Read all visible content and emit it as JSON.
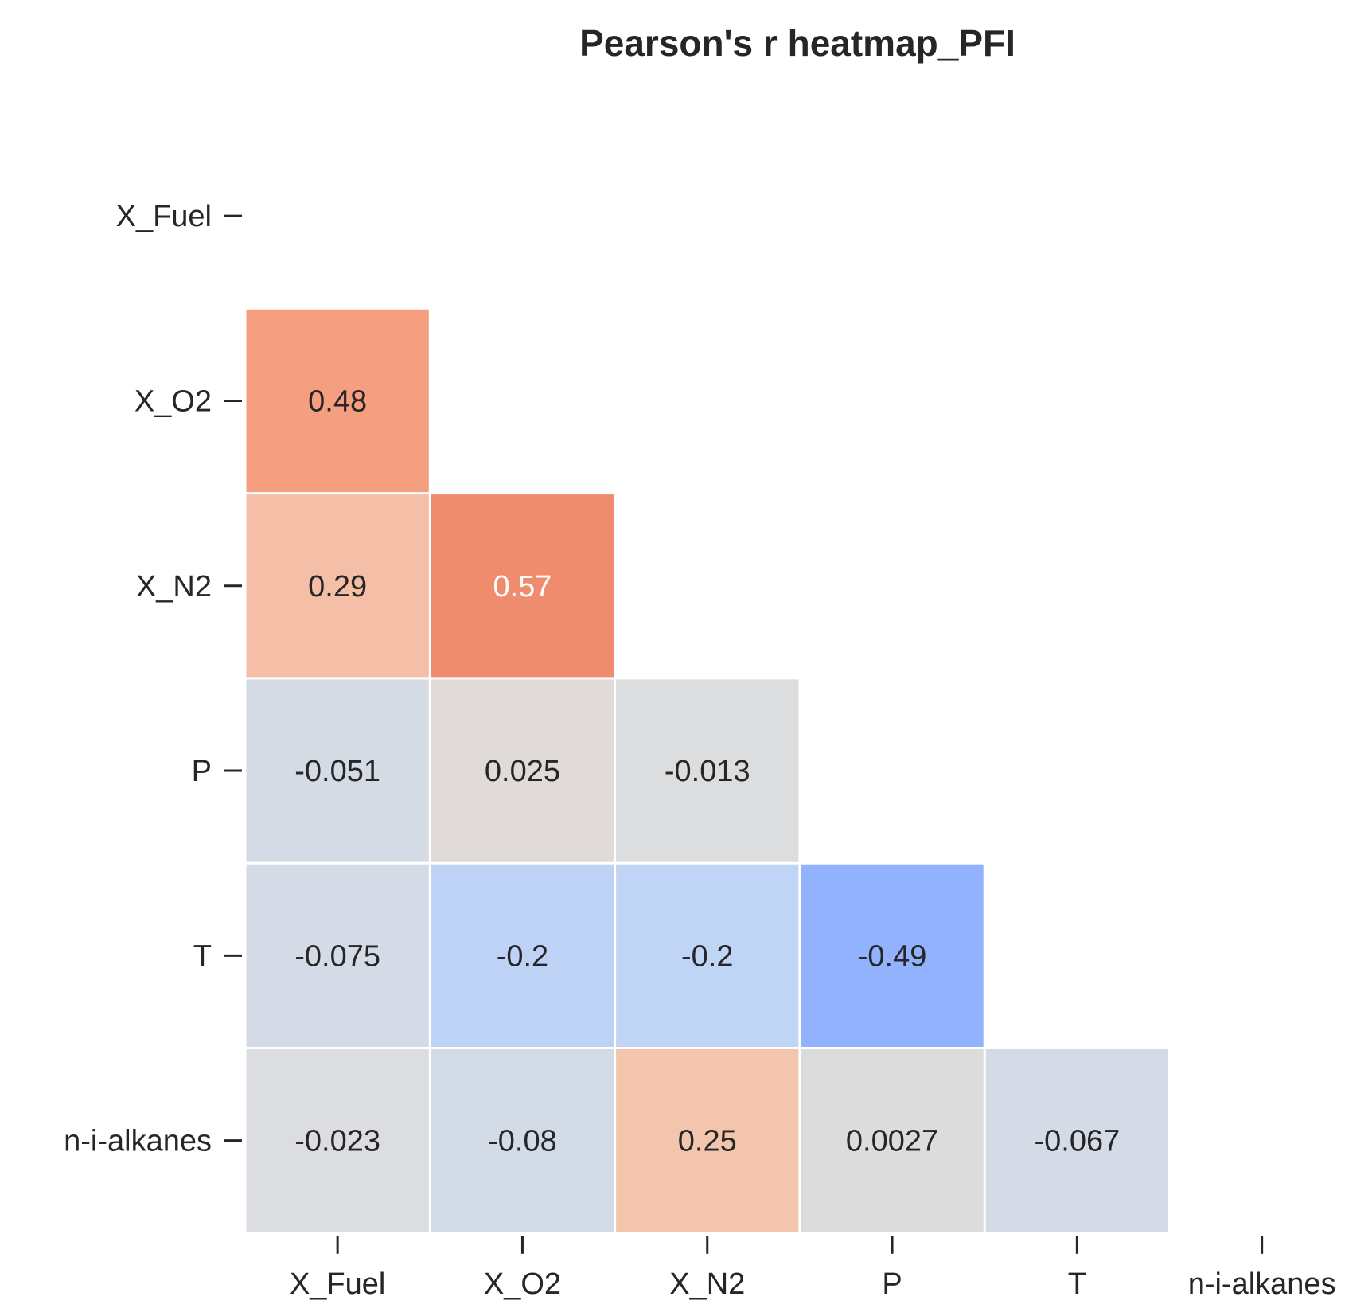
{
  "chart_data": {
    "type": "heatmap",
    "title": "Pearson's r heatmap_PFI",
    "xlabel": "",
    "ylabel": "",
    "variables": [
      "X_Fuel",
      "X_O2",
      "X_N2",
      "P",
      "T",
      "n-i-alkanes"
    ],
    "x_tick_labels": [
      "X_Fuel",
      "X_O2",
      "X_N2",
      "P",
      "T",
      "n-i-alkanes"
    ],
    "y_tick_labels": [
      "X_Fuel",
      "X_O2",
      "X_N2",
      "P",
      "T",
      "n-i-alkanes"
    ],
    "mask": "upper triangle including diagonal",
    "colormap": "coolwarm",
    "value_range": [
      -1,
      1
    ],
    "colorbar": false,
    "grid": false,
    "cells": [
      {
        "row": "X_O2",
        "col": "X_Fuel",
        "value": 0.48,
        "label": "0.48",
        "color": "#f59f80"
      },
      {
        "row": "X_N2",
        "col": "X_Fuel",
        "value": 0.29,
        "label": "0.29",
        "color": "#f5bea6"
      },
      {
        "row": "X_N2",
        "col": "X_O2",
        "value": 0.57,
        "label": "0.57",
        "color": "#f08c6e"
      },
      {
        "row": "P",
        "col": "X_Fuel",
        "value": -0.051,
        "label": "-0.051",
        "color": "#d5dbe5"
      },
      {
        "row": "P",
        "col": "X_O2",
        "value": 0.025,
        "label": "0.025",
        "color": "#e0dbd8"
      },
      {
        "row": "P",
        "col": "X_N2",
        "value": -0.013,
        "label": "-0.013",
        "color": "#dcdddf"
      },
      {
        "row": "T",
        "col": "X_Fuel",
        "value": -0.075,
        "label": "-0.075",
        "color": "#d4dbe6"
      },
      {
        "row": "T",
        "col": "X_O2",
        "value": -0.2,
        "label": "-0.2",
        "color": "#bed2f6"
      },
      {
        "row": "T",
        "col": "X_N2",
        "value": -0.2,
        "label": "-0.2",
        "color": "#c0d4f5"
      },
      {
        "row": "T",
        "col": "P",
        "value": -0.49,
        "label": "-0.49",
        "color": "#92b2fd"
      },
      {
        "row": "n-i-alkanes",
        "col": "X_Fuel",
        "value": -0.023,
        "label": "-0.023",
        "color": "#dcdde1"
      },
      {
        "row": "n-i-alkanes",
        "col": "X_O2",
        "value": -0.08,
        "label": "-0.08",
        "color": "#d3dbe7"
      },
      {
        "row": "n-i-alkanes",
        "col": "X_N2",
        "value": 0.25,
        "label": "0.25",
        "color": "#f4c5ad"
      },
      {
        "row": "n-i-alkanes",
        "col": "P",
        "value": 0.0027,
        "label": "0.0027",
        "color": "#dddcdc"
      },
      {
        "row": "n-i-alkanes",
        "col": "T",
        "value": -0.067,
        "label": "-0.067",
        "color": "#d4dbe6"
      }
    ],
    "label_colors": {
      "dark": "#262626",
      "light": "#ffffff"
    },
    "light_label_threshold": 0.5
  }
}
